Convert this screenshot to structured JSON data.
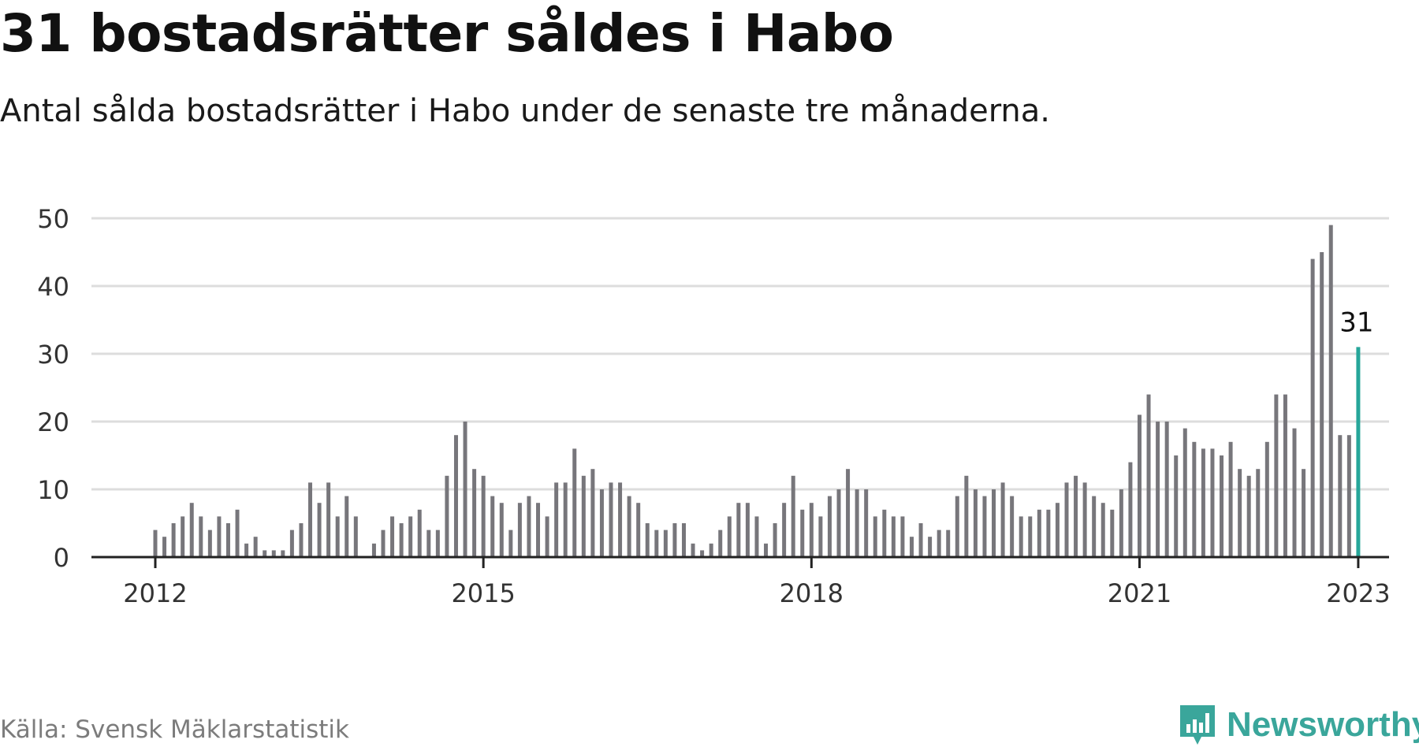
{
  "title": "31 bostadsrätter såldes i Habo",
  "subtitle": "Antal sålda bostadsrätter i Habo under de senaste tre månaderna.",
  "source": "Källa: Svensk Mäklarstatistik",
  "brand": "Newsworthy",
  "colors": {
    "bar": "#77767b",
    "highlight": "#26a69a",
    "grid": "#dddddd",
    "axis": "#222222",
    "brand": "#3aa69b"
  },
  "chart_data": {
    "type": "bar",
    "x": [
      "2012-01",
      "2012-02",
      "2012-03",
      "2012-04",
      "2012-05",
      "2012-06",
      "2012-07",
      "2012-08",
      "2012-09",
      "2012-10",
      "2012-11",
      "2012-12",
      "2013-01",
      "2013-02",
      "2013-03",
      "2013-04",
      "2013-05",
      "2013-06",
      "2013-07",
      "2013-08",
      "2013-09",
      "2013-10",
      "2013-11",
      "2013-12",
      "2014-01",
      "2014-02",
      "2014-03",
      "2014-04",
      "2014-05",
      "2014-06",
      "2014-07",
      "2014-08",
      "2014-09",
      "2014-10",
      "2014-11",
      "2014-12",
      "2015-01",
      "2015-02",
      "2015-03",
      "2015-04",
      "2015-05",
      "2015-06",
      "2015-07",
      "2015-08",
      "2015-09",
      "2015-10",
      "2015-11",
      "2015-12",
      "2016-01",
      "2016-02",
      "2016-03",
      "2016-04",
      "2016-05",
      "2016-06",
      "2016-07",
      "2016-08",
      "2016-09",
      "2016-10",
      "2016-11",
      "2016-12",
      "2017-01",
      "2017-02",
      "2017-03",
      "2017-04",
      "2017-05",
      "2017-06",
      "2017-07",
      "2017-08",
      "2017-09",
      "2017-10",
      "2017-11",
      "2017-12",
      "2018-01",
      "2018-02",
      "2018-03",
      "2018-04",
      "2018-05",
      "2018-06",
      "2018-07",
      "2018-08",
      "2018-09",
      "2018-10",
      "2018-11",
      "2018-12",
      "2019-01",
      "2019-02",
      "2019-03",
      "2019-04",
      "2019-05",
      "2019-06",
      "2019-07",
      "2019-08",
      "2019-09",
      "2019-10",
      "2019-11",
      "2019-12",
      "2020-01",
      "2020-02",
      "2020-03",
      "2020-04",
      "2020-05",
      "2020-06",
      "2020-07",
      "2020-08",
      "2020-09",
      "2020-10",
      "2020-11",
      "2020-12",
      "2021-01",
      "2021-02",
      "2021-03",
      "2021-04",
      "2021-05",
      "2021-06",
      "2021-07",
      "2021-08",
      "2021-09",
      "2021-10",
      "2021-11",
      "2021-12",
      "2022-01",
      "2022-02",
      "2022-03",
      "2022-04",
      "2022-05",
      "2022-06",
      "2022-07",
      "2022-08",
      "2022-09",
      "2022-10",
      "2022-11",
      "2022-12",
      "2023-01"
    ],
    "values": [
      4,
      3,
      5,
      6,
      8,
      6,
      4,
      6,
      5,
      7,
      2,
      3,
      1,
      1,
      1,
      4,
      5,
      11,
      8,
      11,
      6,
      9,
      6,
      0,
      2,
      4,
      6,
      5,
      6,
      7,
      4,
      4,
      12,
      18,
      20,
      13,
      12,
      9,
      8,
      4,
      8,
      9,
      8,
      6,
      11,
      11,
      16,
      12,
      13,
      10,
      11,
      11,
      9,
      8,
      5,
      4,
      4,
      5,
      5,
      2,
      1,
      2,
      4,
      6,
      8,
      8,
      6,
      2,
      5,
      8,
      12,
      7,
      8,
      6,
      9,
      10,
      13,
      10,
      10,
      6,
      7,
      6,
      6,
      3,
      5,
      3,
      4,
      4,
      9,
      12,
      10,
      9,
      10,
      11,
      9,
      6,
      6,
      7,
      7,
      8,
      11,
      12,
      11,
      9,
      8,
      7,
      10,
      14,
      21,
      24,
      20,
      20,
      15,
      19,
      17,
      16,
      16,
      15,
      17,
      13,
      12,
      13,
      17,
      24,
      24,
      19,
      13,
      44,
      45,
      49,
      18,
      18,
      31
    ],
    "highlight_last": true,
    "last_label": "31",
    "x_ticks": [
      {
        "label": "2012",
        "at": "2012-01"
      },
      {
        "label": "2015",
        "at": "2015-01"
      },
      {
        "label": "2018",
        "at": "2018-01"
      },
      {
        "label": "2021",
        "at": "2021-01"
      },
      {
        "label": "2023",
        "at": "2023-01"
      }
    ],
    "y_ticks": [
      0,
      10,
      20,
      30,
      40,
      50
    ],
    "ylim": [
      0,
      50
    ],
    "grid": true
  }
}
